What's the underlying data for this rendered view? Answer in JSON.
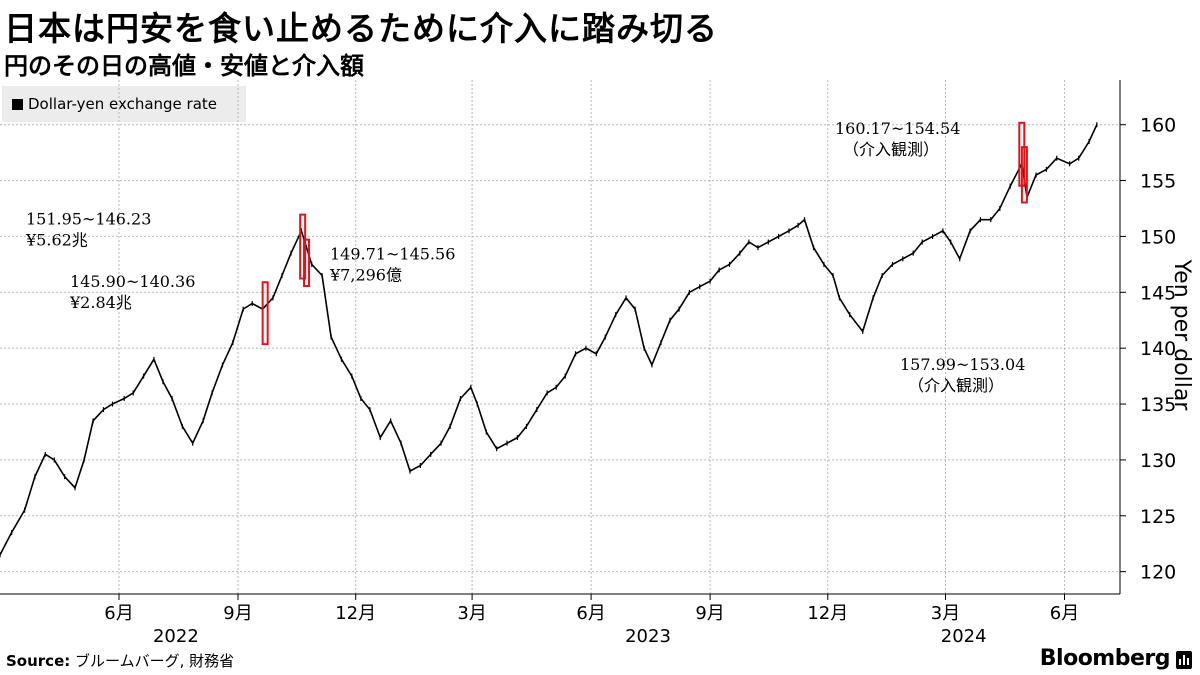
{
  "title": "日本は円安を食い止めるために介入に踏み切る",
  "subtitle": "円のその日の高値・安値と介入額",
  "legend": {
    "label": "Dollar-yen exchange rate",
    "color": "#000000"
  },
  "footer": {
    "source_label": "Source:",
    "source_text": " ブルームバーグ, 財務省"
  },
  "brand": "Bloomberg",
  "colors": {
    "series": "#000000",
    "intervention": "#e0131b",
    "grid": "#b8b8b8"
  },
  "chart_data": {
    "type": "line",
    "ylabel": "Yen per dollar",
    "ylim": [
      118,
      164
    ],
    "yticks": [
      120,
      125,
      130,
      135,
      140,
      145,
      150,
      155,
      160
    ],
    "y_axis_side": "right",
    "grid": true,
    "xlim": [
      "2022-03-01",
      "2024-06-30"
    ],
    "month_ticks": [
      {
        "date": "2022-06-01",
        "label": "6月"
      },
      {
        "date": "2022-09-01",
        "label": "9月"
      },
      {
        "date": "2022-12-01",
        "label": "12月"
      },
      {
        "date": "2023-03-01",
        "label": "3月"
      },
      {
        "date": "2023-06-01",
        "label": "6月"
      },
      {
        "date": "2023-09-01",
        "label": "9月"
      },
      {
        "date": "2023-12-01",
        "label": "12月"
      },
      {
        "date": "2024-03-01",
        "label": "3月"
      },
      {
        "date": "2024-06-01",
        "label": "6月"
      }
    ],
    "year_labels": [
      {
        "date": "2022-07-15",
        "label": "2022"
      },
      {
        "date": "2023-07-15",
        "label": "2023"
      },
      {
        "date": "2024-04-15",
        "label": "2024"
      }
    ],
    "series": [
      {
        "values_note": "",
        "points": [
          [
            "2022-03-01",
            121.5
          ],
          [
            "2022-03-10",
            123.5
          ],
          [
            "2022-03-20",
            125.5
          ],
          [
            "2022-03-28",
            128.5
          ],
          [
            "2022-04-05",
            130.5
          ],
          [
            "2022-04-12",
            130.0
          ],
          [
            "2022-04-20",
            128.5
          ],
          [
            "2022-04-28",
            127.5
          ],
          [
            "2022-05-05",
            130.0
          ],
          [
            "2022-05-12",
            133.5
          ],
          [
            "2022-05-20",
            134.5
          ],
          [
            "2022-05-27",
            135.0
          ],
          [
            "2022-06-05",
            135.5
          ],
          [
            "2022-06-12",
            136.0
          ],
          [
            "2022-06-20",
            137.5
          ],
          [
            "2022-06-28",
            139.0
          ],
          [
            "2022-07-05",
            137.0
          ],
          [
            "2022-07-12",
            135.5
          ],
          [
            "2022-07-20",
            133.0
          ],
          [
            "2022-07-28",
            131.5
          ],
          [
            "2022-08-05",
            133.5
          ],
          [
            "2022-08-12",
            136.0
          ],
          [
            "2022-08-20",
            138.5
          ],
          [
            "2022-08-28",
            140.5
          ],
          [
            "2022-09-05",
            143.5
          ],
          [
            "2022-09-12",
            144.0
          ],
          [
            "2022-09-20",
            143.5
          ],
          [
            "2022-09-28",
            144.5
          ],
          [
            "2022-10-05",
            146.5
          ],
          [
            "2022-10-12",
            148.5
          ],
          [
            "2022-10-20",
            150.5
          ],
          [
            "2022-10-28",
            147.5
          ],
          [
            "2022-11-05",
            146.5
          ],
          [
            "2022-11-12",
            141.0
          ],
          [
            "2022-11-20",
            139.0
          ],
          [
            "2022-11-28",
            137.5
          ],
          [
            "2022-12-05",
            135.5
          ],
          [
            "2022-12-12",
            134.5
          ],
          [
            "2022-12-20",
            132.0
          ],
          [
            "2022-12-28",
            133.5
          ],
          [
            "2023-01-05",
            131.5
          ],
          [
            "2023-01-12",
            129.0
          ],
          [
            "2023-01-20",
            129.5
          ],
          [
            "2023-01-28",
            130.5
          ],
          [
            "2023-02-05",
            131.5
          ],
          [
            "2023-02-12",
            133.0
          ],
          [
            "2023-02-20",
            135.5
          ],
          [
            "2023-02-28",
            136.5
          ],
          [
            "2023-03-05",
            135.0
          ],
          [
            "2023-03-12",
            132.5
          ],
          [
            "2023-03-20",
            131.0
          ],
          [
            "2023-03-28",
            131.5
          ],
          [
            "2023-04-05",
            132.0
          ],
          [
            "2023-04-12",
            133.0
          ],
          [
            "2023-04-20",
            134.5
          ],
          [
            "2023-04-28",
            136.0
          ],
          [
            "2023-05-05",
            136.5
          ],
          [
            "2023-05-12",
            137.5
          ],
          [
            "2023-05-20",
            139.5
          ],
          [
            "2023-05-28",
            140.0
          ],
          [
            "2023-06-05",
            139.5
          ],
          [
            "2023-06-12",
            141.0
          ],
          [
            "2023-06-20",
            143.0
          ],
          [
            "2023-06-28",
            144.5
          ],
          [
            "2023-07-05",
            143.5
          ],
          [
            "2023-07-12",
            140.0
          ],
          [
            "2023-07-18",
            138.5
          ],
          [
            "2023-07-25",
            140.5
          ],
          [
            "2023-08-01",
            142.5
          ],
          [
            "2023-08-08",
            143.5
          ],
          [
            "2023-08-16",
            145.0
          ],
          [
            "2023-08-24",
            145.5
          ],
          [
            "2023-09-01",
            146.0
          ],
          [
            "2023-09-08",
            147.0
          ],
          [
            "2023-09-16",
            147.5
          ],
          [
            "2023-09-24",
            148.5
          ],
          [
            "2023-10-01",
            149.5
          ],
          [
            "2023-10-08",
            149.0
          ],
          [
            "2023-10-16",
            149.5
          ],
          [
            "2023-10-24",
            150.0
          ],
          [
            "2023-11-01",
            150.5
          ],
          [
            "2023-11-08",
            151.0
          ],
          [
            "2023-11-13",
            151.5
          ],
          [
            "2023-11-20",
            149.0
          ],
          [
            "2023-11-28",
            147.5
          ],
          [
            "2023-12-05",
            146.5
          ],
          [
            "2023-12-10",
            144.5
          ],
          [
            "2023-12-18",
            143.0
          ],
          [
            "2023-12-28",
            141.5
          ],
          [
            "2024-01-05",
            144.5
          ],
          [
            "2024-01-12",
            146.5
          ],
          [
            "2024-01-20",
            147.5
          ],
          [
            "2024-01-28",
            148.0
          ],
          [
            "2024-02-05",
            148.5
          ],
          [
            "2024-02-12",
            149.5
          ],
          [
            "2024-02-20",
            150.0
          ],
          [
            "2024-02-28",
            150.5
          ],
          [
            "2024-03-05",
            149.5
          ],
          [
            "2024-03-12",
            148.0
          ],
          [
            "2024-03-20",
            150.5
          ],
          [
            "2024-03-28",
            151.5
          ],
          [
            "2024-04-05",
            151.5
          ],
          [
            "2024-04-12",
            152.5
          ],
          [
            "2024-04-20",
            154.5
          ],
          [
            "2024-04-29",
            156.5
          ],
          [
            "2024-05-03",
            153.5
          ],
          [
            "2024-05-10",
            155.5
          ],
          [
            "2024-05-18",
            156.0
          ],
          [
            "2024-05-26",
            157.0
          ],
          [
            "2024-06-05",
            156.5
          ],
          [
            "2024-06-12",
            157.0
          ],
          [
            "2024-06-20",
            158.5
          ],
          [
            "2024-06-26",
            160.0
          ]
        ]
      }
    ],
    "interventions": [
      {
        "date": "2022-09-22",
        "high": 145.9,
        "low": 140.36,
        "text": "145.90~140.36",
        "amount": "¥2.84兆",
        "label_anchor": "left"
      },
      {
        "date": "2022-10-21",
        "high": 151.95,
        "low": 146.23,
        "text": "151.95~146.23",
        "amount": "¥5.62兆",
        "label_anchor": "far-left"
      },
      {
        "date": "2022-10-24",
        "high": 149.71,
        "low": 145.56,
        "text": "149.71~145.56",
        "amount": "¥7,296億",
        "label_anchor": "right"
      },
      {
        "date": "2024-04-29",
        "high": 160.17,
        "low": 154.54,
        "text": "160.17~154.54",
        "amount": "（介入観測）",
        "label_anchor": "top-left"
      },
      {
        "date": "2024-05-01",
        "high": 157.99,
        "low": 153.04,
        "text": "157.99~153.04",
        "amount": "（介入観測）",
        "label_anchor": "bottom-left"
      }
    ]
  }
}
